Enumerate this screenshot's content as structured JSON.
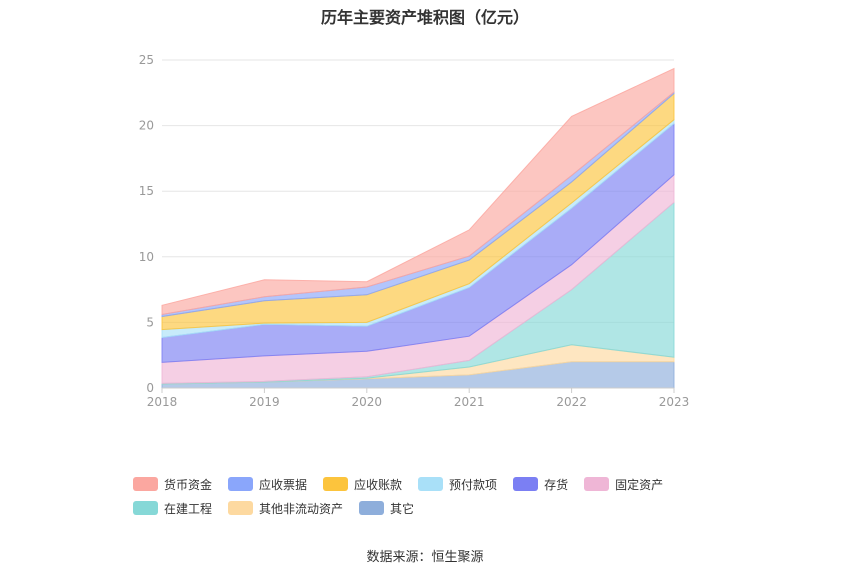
{
  "chart_data": {
    "type": "area",
    "stacked": true,
    "title": "历年主要资产堆积图（亿元）",
    "x": [
      "2018",
      "2019",
      "2020",
      "2021",
      "2022",
      "2023"
    ],
    "ylim": [
      0,
      25
    ],
    "yticks": [
      "0",
      "5",
      "10",
      "15",
      "20",
      "25"
    ],
    "grid": true,
    "legend_position": "bottom",
    "series": [
      {
        "name": "其它",
        "color": "#8eaedb",
        "values": [
          0.3,
          0.45,
          0.7,
          1.0,
          2.0,
          2.0
        ]
      },
      {
        "name": "其他非流动资产",
        "color": "#fdd9a0",
        "values": [
          0.0,
          0.0,
          0.05,
          0.6,
          1.3,
          0.35
        ]
      },
      {
        "name": "在建工程",
        "color": "#86d8d7",
        "values": [
          0.05,
          0.05,
          0.1,
          0.5,
          4.2,
          11.8
        ]
      },
      {
        "name": "固定资产",
        "color": "#efb6d6",
        "values": [
          1.6,
          1.95,
          1.95,
          1.85,
          1.9,
          2.1
        ]
      },
      {
        "name": "存货",
        "color": "#7b7ff3",
        "values": [
          1.9,
          2.4,
          1.9,
          3.7,
          4.3,
          3.9
        ]
      },
      {
        "name": "预付款项",
        "color": "#a9e0f8",
        "values": [
          0.6,
          0.1,
          0.3,
          0.3,
          0.4,
          0.3
        ]
      },
      {
        "name": "应收账款",
        "color": "#fcc43d",
        "values": [
          1.0,
          1.7,
          2.1,
          1.8,
          1.6,
          2.0
        ]
      },
      {
        "name": "应收票据",
        "color": "#8aa6fb",
        "values": [
          0.15,
          0.3,
          0.6,
          0.3,
          0.5,
          0.1
        ]
      },
      {
        "name": "货币资金",
        "color": "#fba7a0",
        "values": [
          0.7,
          1.3,
          0.4,
          2.0,
          4.5,
          1.8
        ]
      }
    ]
  },
  "legend_order": [
    "货币资金",
    "应收票据",
    "应收账款",
    "预付款项",
    "存货",
    "固定资产",
    "在建工程",
    "其他非流动资产",
    "其它"
  ],
  "source": "数据来源：恒生聚源"
}
